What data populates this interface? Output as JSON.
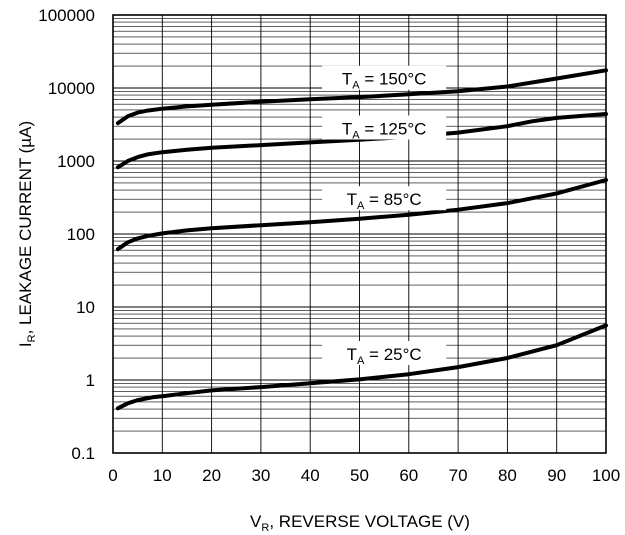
{
  "chart_data": {
    "type": "line",
    "xlabel_main": "V",
    "xlabel_sub": "R",
    "xlabel_rest": ", REVERSE VOLTAGE (V)",
    "ylabel_main": "I",
    "ylabel_sub": "R",
    "ylabel_rest": ", LEAKAGE CURRENT (µA)",
    "xlim": [
      0,
      100
    ],
    "ylim": [
      0.1,
      100000
    ],
    "yscale": "log",
    "grid": true,
    "x_ticks": [
      0,
      10,
      20,
      30,
      40,
      50,
      60,
      70,
      80,
      90,
      100
    ],
    "x_tick_labels": [
      "0",
      "10",
      "20",
      "30",
      "40",
      "50",
      "60",
      "70",
      "80",
      "90",
      "100"
    ],
    "y_ticks": [
      0.1,
      1,
      10,
      100,
      1000,
      10000,
      100000
    ],
    "y_tick_labels": [
      "0.1",
      "1",
      "10",
      "100",
      "1000",
      "10000",
      "100000"
    ],
    "series": [
      {
        "label_main": "T",
        "label_sub": "A",
        "label_rest": " = 150°C",
        "label_x": 55,
        "label_y": 13000,
        "x": [
          1,
          3,
          5,
          7,
          10,
          15,
          20,
          30,
          40,
          50,
          60,
          70,
          80,
          90,
          100
        ],
        "y": [
          3300,
          4100,
          4600,
          4900,
          5200,
          5600,
          5900,
          6500,
          7000,
          7500,
          8200,
          9000,
          10500,
          13500,
          17500
        ]
      },
      {
        "label_main": "T",
        "label_sub": "A",
        "label_rest": " = 125°C",
        "label_x": 55,
        "label_y": 2700,
        "x": [
          1,
          3,
          5,
          7,
          10,
          15,
          20,
          30,
          40,
          50,
          60,
          70,
          80,
          85,
          90,
          100
        ],
        "y": [
          820,
          1000,
          1130,
          1230,
          1320,
          1430,
          1520,
          1650,
          1800,
          1950,
          2150,
          2450,
          3000,
          3500,
          3900,
          4400
        ]
      },
      {
        "label_main": "T",
        "label_sub": "A",
        "label_rest": " = 85°C",
        "label_x": 55,
        "label_y": 290,
        "x": [
          1,
          3,
          5,
          7,
          10,
          15,
          20,
          30,
          40,
          50,
          60,
          70,
          80,
          90,
          100
        ],
        "y": [
          62,
          77,
          87,
          94,
          102,
          112,
          120,
          132,
          145,
          162,
          183,
          215,
          265,
          360,
          550
        ]
      },
      {
        "label_main": "T",
        "label_sub": "A",
        "label_rest": " = 25°C",
        "label_x": 55,
        "label_y": 2.2,
        "x": [
          1,
          3,
          5,
          8,
          10,
          15,
          20,
          30,
          40,
          50,
          60,
          70,
          80,
          90,
          100
        ],
        "y": [
          0.41,
          0.48,
          0.53,
          0.58,
          0.6,
          0.66,
          0.72,
          0.8,
          0.9,
          1.02,
          1.2,
          1.5,
          2.0,
          3.0,
          5.6
        ]
      }
    ]
  }
}
